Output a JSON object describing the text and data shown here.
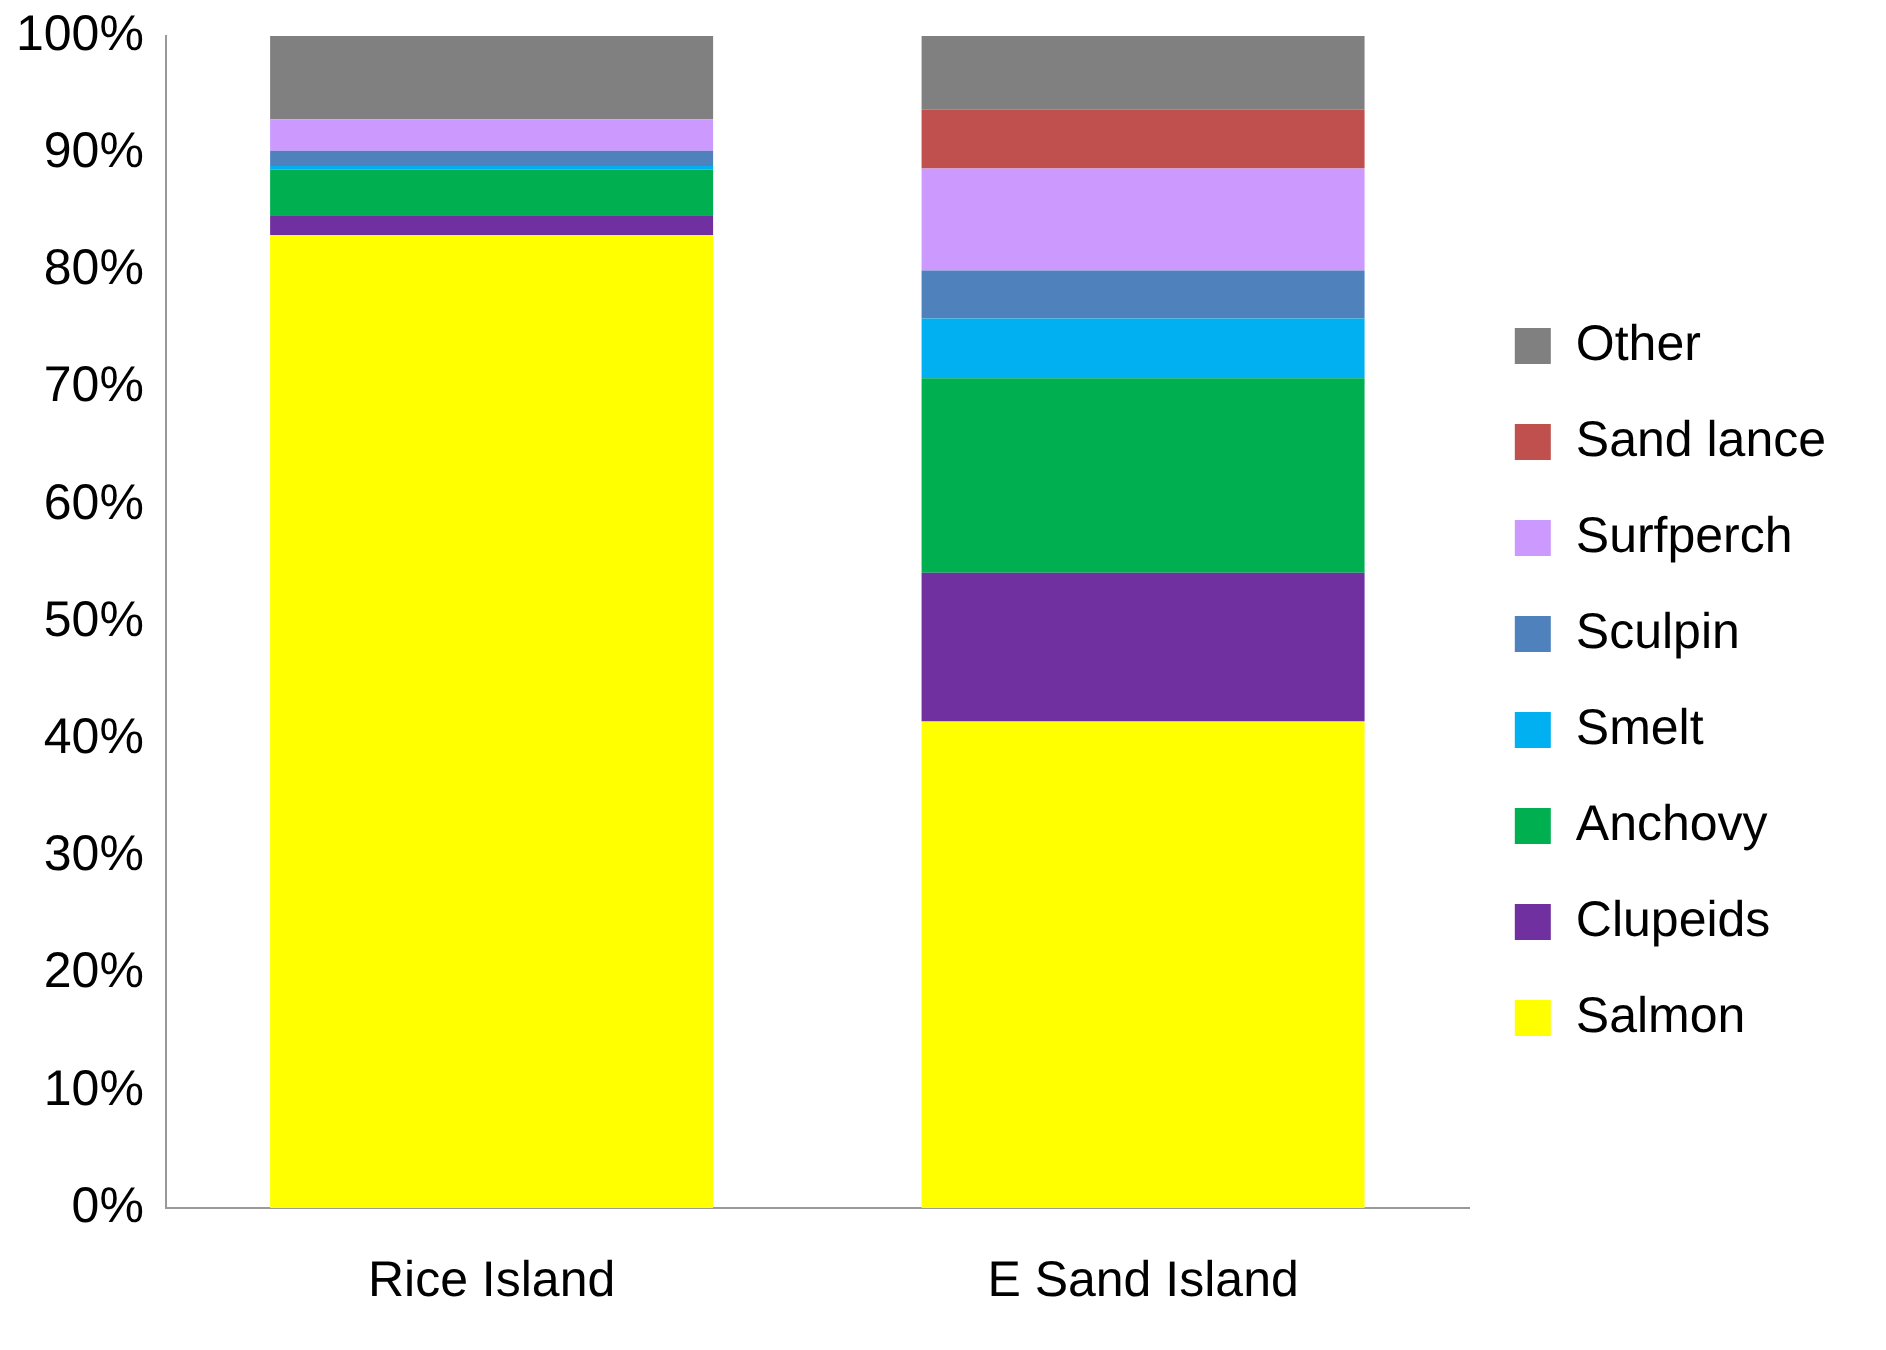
{
  "chart_data": {
    "type": "bar",
    "stacked": true,
    "categories": [
      "Rice Island",
      "E Sand Island"
    ],
    "series": [
      {
        "name": "Salmon",
        "color": "#ffff00",
        "values": [
          83,
          41.5
        ]
      },
      {
        "name": "Clupeids",
        "color": "#7030a0",
        "values": [
          1.7,
          12.7
        ]
      },
      {
        "name": "Anchovy",
        "color": "#00b050",
        "values": [
          3.9,
          16.6
        ]
      },
      {
        "name": "Smelt",
        "color": "#00b0f0",
        "values": [
          0.3,
          5.1
        ]
      },
      {
        "name": "Sculpin",
        "color": "#4f81bd",
        "values": [
          1.3,
          4.1
        ]
      },
      {
        "name": "Surfperch",
        "color": "#cc99ff",
        "values": [
          2.7,
          8.7
        ]
      },
      {
        "name": "Sand lance",
        "color": "#c0504d",
        "values": [
          0,
          5.0
        ]
      },
      {
        "name": "Other",
        "color": "#808080",
        "values": [
          7.1,
          6.3
        ]
      }
    ],
    "ylim": [
      0,
      100
    ],
    "yticks": [
      {
        "value": 0,
        "label": "0%"
      },
      {
        "value": 10,
        "label": "10%"
      },
      {
        "value": 20,
        "label": "20%"
      },
      {
        "value": 30,
        "label": "30%"
      },
      {
        "value": 40,
        "label": "40%"
      },
      {
        "value": 50,
        "label": "50%"
      },
      {
        "value": 60,
        "label": "60%"
      },
      {
        "value": 70,
        "label": "70%"
      },
      {
        "value": 80,
        "label": "80%"
      },
      {
        "value": 90,
        "label": "90%"
      },
      {
        "value": 100,
        "label": "100%"
      }
    ],
    "grid": false,
    "legend": "right"
  }
}
